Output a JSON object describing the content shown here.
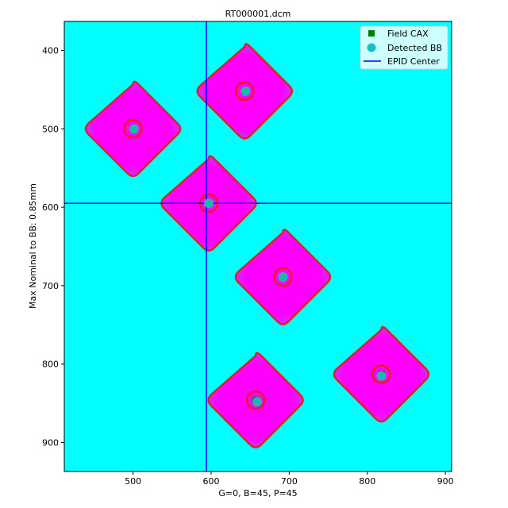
{
  "chart_data": {
    "type": "scatter",
    "title": "RT000001.dcm",
    "xlabel": "G=0, B=45, P=45",
    "ylabel": "Max Nominal to BB: 0.85mm",
    "xlim": [
      412,
      908
    ],
    "ylim": [
      937,
      363
    ],
    "y_inverted": true,
    "x_ticks": [
      500,
      600,
      700,
      800,
      900
    ],
    "y_ticks": [
      400,
      500,
      600,
      700,
      800,
      900
    ],
    "grid": false,
    "legend_position": "top-right",
    "background_color": "#00ffff",
    "field_color": "#ff00ff",
    "contour_color": "#dd2222",
    "fields": [
      {
        "center": [
          500,
          500
        ],
        "half_width": 64
      },
      {
        "center": [
          643,
          452
        ],
        "half_width": 64
      },
      {
        "center": [
          597,
          595
        ],
        "half_width": 64
      },
      {
        "center": [
          692,
          689
        ],
        "half_width": 64
      },
      {
        "center": [
          657,
          846
        ],
        "half_width": 64
      },
      {
        "center": [
          818,
          813
        ],
        "half_width": 64
      }
    ],
    "series": [
      {
        "name": "Field CAX",
        "marker": "square",
        "color": "#008000",
        "points": [
          [
            500,
            500
          ],
          [
            643,
            452
          ],
          [
            597,
            595
          ],
          [
            692,
            689
          ],
          [
            657,
            846
          ],
          [
            818,
            813
          ]
        ]
      },
      {
        "name": "Detected BB",
        "marker": "circle",
        "color": "#1cbfbf",
        "points": [
          [
            501,
            500
          ],
          [
            644,
            452
          ],
          [
            597,
            595
          ],
          [
            692,
            689
          ],
          [
            659,
            848
          ],
          [
            818,
            815
          ]
        ]
      },
      {
        "name": "EPID Center",
        "marker": "line",
        "color": "#0000ff",
        "x": 594,
        "y": 595
      }
    ]
  }
}
